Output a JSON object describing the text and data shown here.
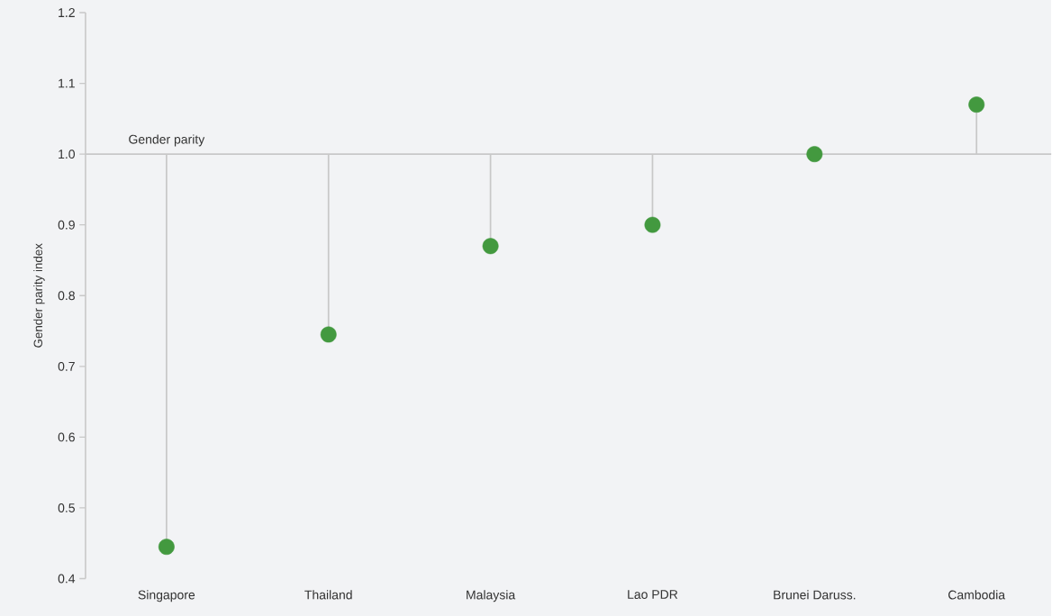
{
  "chart_data": {
    "type": "lollipop",
    "ylabel": "Gender parity index",
    "categories": [
      "Singapore",
      "Thailand",
      "Malaysia",
      "Lao PDR",
      "Brunei Daruss.",
      "Cambodia"
    ],
    "values": [
      0.445,
      0.745,
      0.87,
      0.9,
      1.0,
      1.07
    ],
    "errors": [
      [
        0.445,
        1.0
      ],
      [
        0.745,
        1.0
      ],
      [
        0.87,
        1.0
      ],
      [
        0.9,
        1.0
      ],
      null,
      [
        1.0,
        1.07
      ]
    ],
    "color": "#43993f",
    "marker": "circle",
    "ref_lines": [
      {
        "axis": "y",
        "value": 1.0,
        "label": "Gender parity",
        "color": "#c8c8c8"
      }
    ],
    "ylim": [
      0.4,
      1.2
    ],
    "yticks": [
      {
        "value": 0.4,
        "label": "0.4"
      },
      {
        "value": 0.5,
        "label": "0.5"
      },
      {
        "value": 0.6,
        "label": "0.6"
      },
      {
        "value": 0.7,
        "label": "0.7"
      },
      {
        "value": 0.8,
        "label": "0.8"
      },
      {
        "value": 0.9,
        "label": "0.9"
      },
      {
        "value": 1.0,
        "label": "1.0"
      },
      {
        "value": 1.1,
        "label": "1.1"
      },
      {
        "value": 1.2,
        "label": "1.2"
      }
    ]
  }
}
